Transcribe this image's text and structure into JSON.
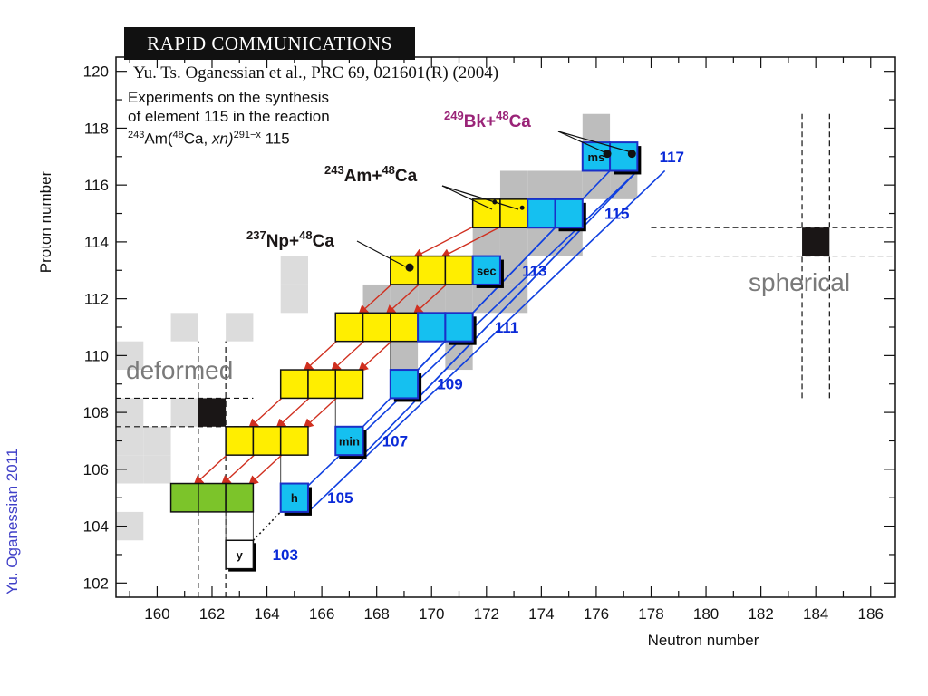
{
  "banner": "RAPID COMMUNICATIONS",
  "citation": "Yu. Ts. Oganessian et al., PRC 69, 021601(R) (2004)",
  "experiment_text": {
    "line1": "Experiments on the synthesis",
    "line2": "of element 115 in the reaction",
    "line3_prefix": "243",
    "line3_a": "Am(",
    "line3_b": "48",
    "line3_c": "Ca, ",
    "line3_d": "xn)",
    "line3_e": "291−x",
    "line3_f": " 115"
  },
  "side_credit": "Yu. Oganessian 2011",
  "region_labels": {
    "spherical": "spherical",
    "deformed": "deformed"
  },
  "colors": {
    "yellow": "#ffee00",
    "cyan": "#15c0f0",
    "green": "#7cc42a",
    "grey": "#bdbdbd",
    "light_grey": "#dcdcdc",
    "black": "#1a1616",
    "arrow_red": "#d03020",
    "chain_blue": "#1040e0",
    "element_blue": "#0a2ad8",
    "bk_purple": "#9a2478"
  },
  "chart_data": {
    "type": "table",
    "title": "",
    "xlabel": "Neutron number",
    "ylabel": "Proton number",
    "xlim": [
      158.5,
      186.9
    ],
    "ylim": [
      101.5,
      120.5
    ],
    "xticks": [
      160,
      162,
      164,
      166,
      168,
      170,
      172,
      174,
      176,
      178,
      180,
      182,
      184,
      186
    ],
    "yticks": [
      102,
      104,
      106,
      108,
      110,
      112,
      114,
      116,
      118,
      120
    ],
    "known_nuclei_light": [
      {
        "n": 159,
        "z": 104
      },
      {
        "n": 159,
        "z": 106
      },
      {
        "n": 159,
        "z": 107
      },
      {
        "n": 159,
        "z": 108
      },
      {
        "n": 159,
        "z": 110
      },
      {
        "n": 160,
        "z": 106
      },
      {
        "n": 160,
        "z": 107
      },
      {
        "n": 161,
        "z": 108
      },
      {
        "n": 161,
        "z": 111
      },
      {
        "n": 163,
        "z": 111
      },
      {
        "n": 165,
        "z": 112
      },
      {
        "n": 165,
        "z": 113
      }
    ],
    "region_grey": [
      {
        "n": 169,
        "z": 110
      },
      {
        "n": 170,
        "z": 111
      },
      {
        "n": 171,
        "z": 110
      },
      {
        "n": 168,
        "z": 112
      },
      {
        "n": 169,
        "z": 112
      },
      {
        "n": 170,
        "z": 112
      },
      {
        "n": 171,
        "z": 112
      },
      {
        "n": 172,
        "z": 112
      },
      {
        "n": 173,
        "z": 112
      },
      {
        "n": 172,
        "z": 113
      },
      {
        "n": 173,
        "z": 113
      },
      {
        "n": 172,
        "z": 114
      },
      {
        "n": 173,
        "z": 114
      },
      {
        "n": 174,
        "z": 114
      },
      {
        "n": 175,
        "z": 114
      },
      {
        "n": 173,
        "z": 116
      },
      {
        "n": 174,
        "z": 116
      },
      {
        "n": 175,
        "z": 116
      },
      {
        "n": 176,
        "z": 116
      },
      {
        "n": 177,
        "z": 116
      },
      {
        "n": 176,
        "z": 118
      }
    ],
    "closed_shells_black": [
      {
        "n": 162,
        "z": 108
      },
      {
        "n": 184,
        "z": 114
      }
    ],
    "chains": [
      {
        "reaction": "249Bk+48Ca",
        "cyan": [
          {
            "n": 176,
            "z": 117,
            "label": "ms"
          },
          {
            "n": 177,
            "z": 117
          }
        ]
      },
      {
        "reaction": "243Am+48Ca",
        "yellow": [
          {
            "n": 172,
            "z": 115
          },
          {
            "n": 173,
            "z": 115
          }
        ],
        "cyan": [
          {
            "n": 174,
            "z": 115
          },
          {
            "n": 175,
            "z": 115
          }
        ]
      },
      {
        "reaction": "237Np+48Ca",
        "yellow": [
          {
            "n": 169,
            "z": 113
          },
          {
            "n": 170,
            "z": 113
          },
          {
            "n": 171,
            "z": 113
          }
        ],
        "cyan": [
          {
            "n": 172,
            "z": 113,
            "label": "sec"
          }
        ]
      },
      {
        "yellow": [
          {
            "n": 167,
            "z": 111
          },
          {
            "n": 168,
            "z": 111
          },
          {
            "n": 169,
            "z": 111
          }
        ],
        "cyan": [
          {
            "n": 170,
            "z": 111
          },
          {
            "n": 171,
            "z": 111
          }
        ]
      },
      {
        "yellow": [
          {
            "n": 165,
            "z": 109
          },
          {
            "n": 166,
            "z": 109
          },
          {
            "n": 167,
            "z": 109
          }
        ],
        "cyan": [
          {
            "n": 169,
            "z": 109
          }
        ]
      },
      {
        "yellow": [
          {
            "n": 163,
            "z": 107
          },
          {
            "n": 164,
            "z": 107
          },
          {
            "n": 165,
            "z": 107
          }
        ],
        "cyan": [
          {
            "n": 167,
            "z": 107,
            "label": "min"
          }
        ]
      },
      {
        "green": [
          {
            "n": 161,
            "z": 105
          },
          {
            "n": 162,
            "z": 105
          },
          {
            "n": 163,
            "z": 105
          }
        ],
        "cyan": [
          {
            "n": 165,
            "z": 105,
            "label": "h"
          }
        ]
      },
      {
        "white": [
          {
            "n": 163,
            "z": 103,
            "label": "y"
          }
        ]
      }
    ],
    "element_labels": [
      {
        "z": 117,
        "n": 178.3,
        "text": "117"
      },
      {
        "z": 115,
        "n": 176.3,
        "text": "115"
      },
      {
        "z": 113,
        "n": 173.3,
        "text": "113"
      },
      {
        "z": 111,
        "n": 172.3,
        "text": "111"
      },
      {
        "z": 109,
        "n": 170.2,
        "text": "109"
      },
      {
        "z": 107,
        "n": 168.2,
        "text": "107"
      },
      {
        "z": 105,
        "n": 166.2,
        "text": "105"
      },
      {
        "z": 103,
        "n": 164.2,
        "text": "103"
      }
    ],
    "reaction_labels": [
      {
        "target_mass": "249",
        "target": "Bk",
        "projectile_mass": "48",
        "projectile": "Ca",
        "color": "bk_purple"
      },
      {
        "target_mass": "243",
        "target": "Am",
        "projectile_mass": "48",
        "projectile": "Ca",
        "color": "black"
      },
      {
        "target_mass": "237",
        "target": "Np",
        "projectile_mass": "48",
        "projectile": "Ca",
        "color": "black"
      }
    ],
    "plus_sign": "+"
  }
}
